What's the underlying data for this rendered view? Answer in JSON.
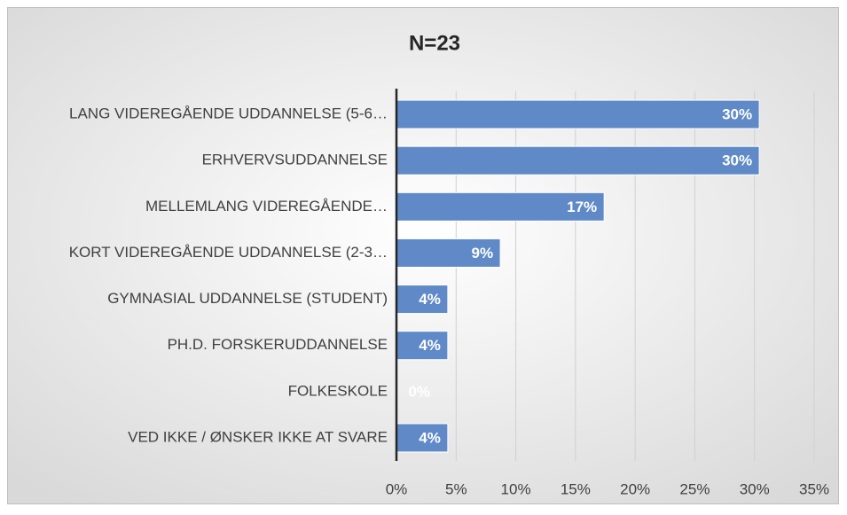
{
  "chart_data": {
    "type": "bar",
    "orientation": "horizontal",
    "title": "N=23",
    "categories": [
      "LANG VIDEREGÅENDE UDDANNELSE (5-6…",
      "ERHVERVSUDDANNELSE",
      "MELLEMLANG VIDEREGÅENDE…",
      "KORT VIDEREGÅENDE UDDANNELSE (2-3…",
      "GYMNASIAL UDDANNELSE (STUDENT)",
      "PH.D. FORSKERUDDANNELSE",
      "FOLKESKOLE",
      "VED IKKE / ØNSKER IKKE AT SVARE"
    ],
    "values": [
      30.4,
      30.4,
      17.4,
      8.7,
      4.3,
      4.3,
      0,
      4.3
    ],
    "value_labels": [
      "30%",
      "30%",
      "17%",
      "9%",
      "4%",
      "4%",
      "0%",
      "4%"
    ],
    "color": "#5f8ac7",
    "xlim": [
      0,
      35
    ],
    "xticks": [
      {
        "value": 0,
        "label": "0%"
      },
      {
        "value": 5,
        "label": "5%"
      },
      {
        "value": 10,
        "label": "10%"
      },
      {
        "value": 15,
        "label": "15%"
      },
      {
        "value": 20,
        "label": "20%"
      },
      {
        "value": 25,
        "label": "25%"
      },
      {
        "value": 30,
        "label": "30%"
      },
      {
        "value": 35,
        "label": "35%"
      }
    ],
    "grid": true
  }
}
